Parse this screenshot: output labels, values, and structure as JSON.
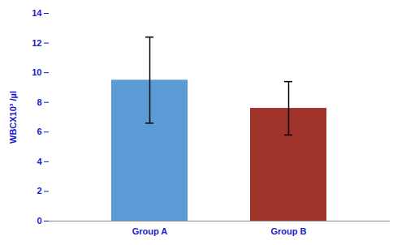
{
  "chart_data": {
    "type": "bar",
    "categories": [
      "Group A",
      "Group B"
    ],
    "values": [
      9.5,
      7.6
    ],
    "errors": [
      2.9,
      1.8
    ],
    "colors": [
      "#5B9BD5",
      "#A0332A"
    ],
    "ylabel": "WBCX10³ /µl",
    "ylim": [
      0,
      14
    ],
    "yticks": [
      0,
      2,
      4,
      6,
      8,
      10,
      12,
      14
    ],
    "grid": false
  }
}
